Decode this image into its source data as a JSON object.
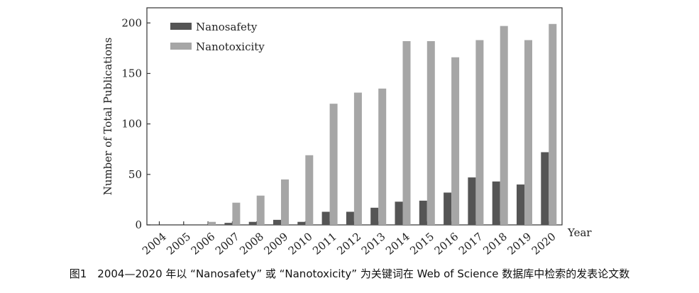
{
  "chart_data": {
    "type": "bar",
    "title": "",
    "xlabel": "Year",
    "ylabel": "Number of Total Publications",
    "ylim": [
      0,
      215
    ],
    "yticks": [
      0,
      50,
      100,
      150,
      200
    ],
    "grid": false,
    "legend_position": "top-left",
    "categories": [
      "2004",
      "2005",
      "2006",
      "2007",
      "2008",
      "2009",
      "2010",
      "2011",
      "2012",
      "2013",
      "2014",
      "2015",
      "2016",
      "2017",
      "2018",
      "2019",
      "2020"
    ],
    "series": [
      {
        "name": "Nanosafety",
        "color": "#555555",
        "values": [
          0,
          0,
          0,
          2,
          3,
          5,
          3,
          13,
          13,
          17,
          23,
          24,
          32,
          47,
          43,
          40,
          72
        ]
      },
      {
        "name": "Nanotoxicity",
        "color": "#a6a6a6",
        "values": [
          0,
          0,
          3,
          22,
          29,
          45,
          69,
          120,
          131,
          135,
          182,
          182,
          166,
          183,
          197,
          183,
          199
        ]
      }
    ]
  },
  "caption": "图1　2004—2020 年以 “Nanosafety” 或 “Nanotoxicity” 为关键词在 Web of Science 数据库中检索的发表论文数"
}
